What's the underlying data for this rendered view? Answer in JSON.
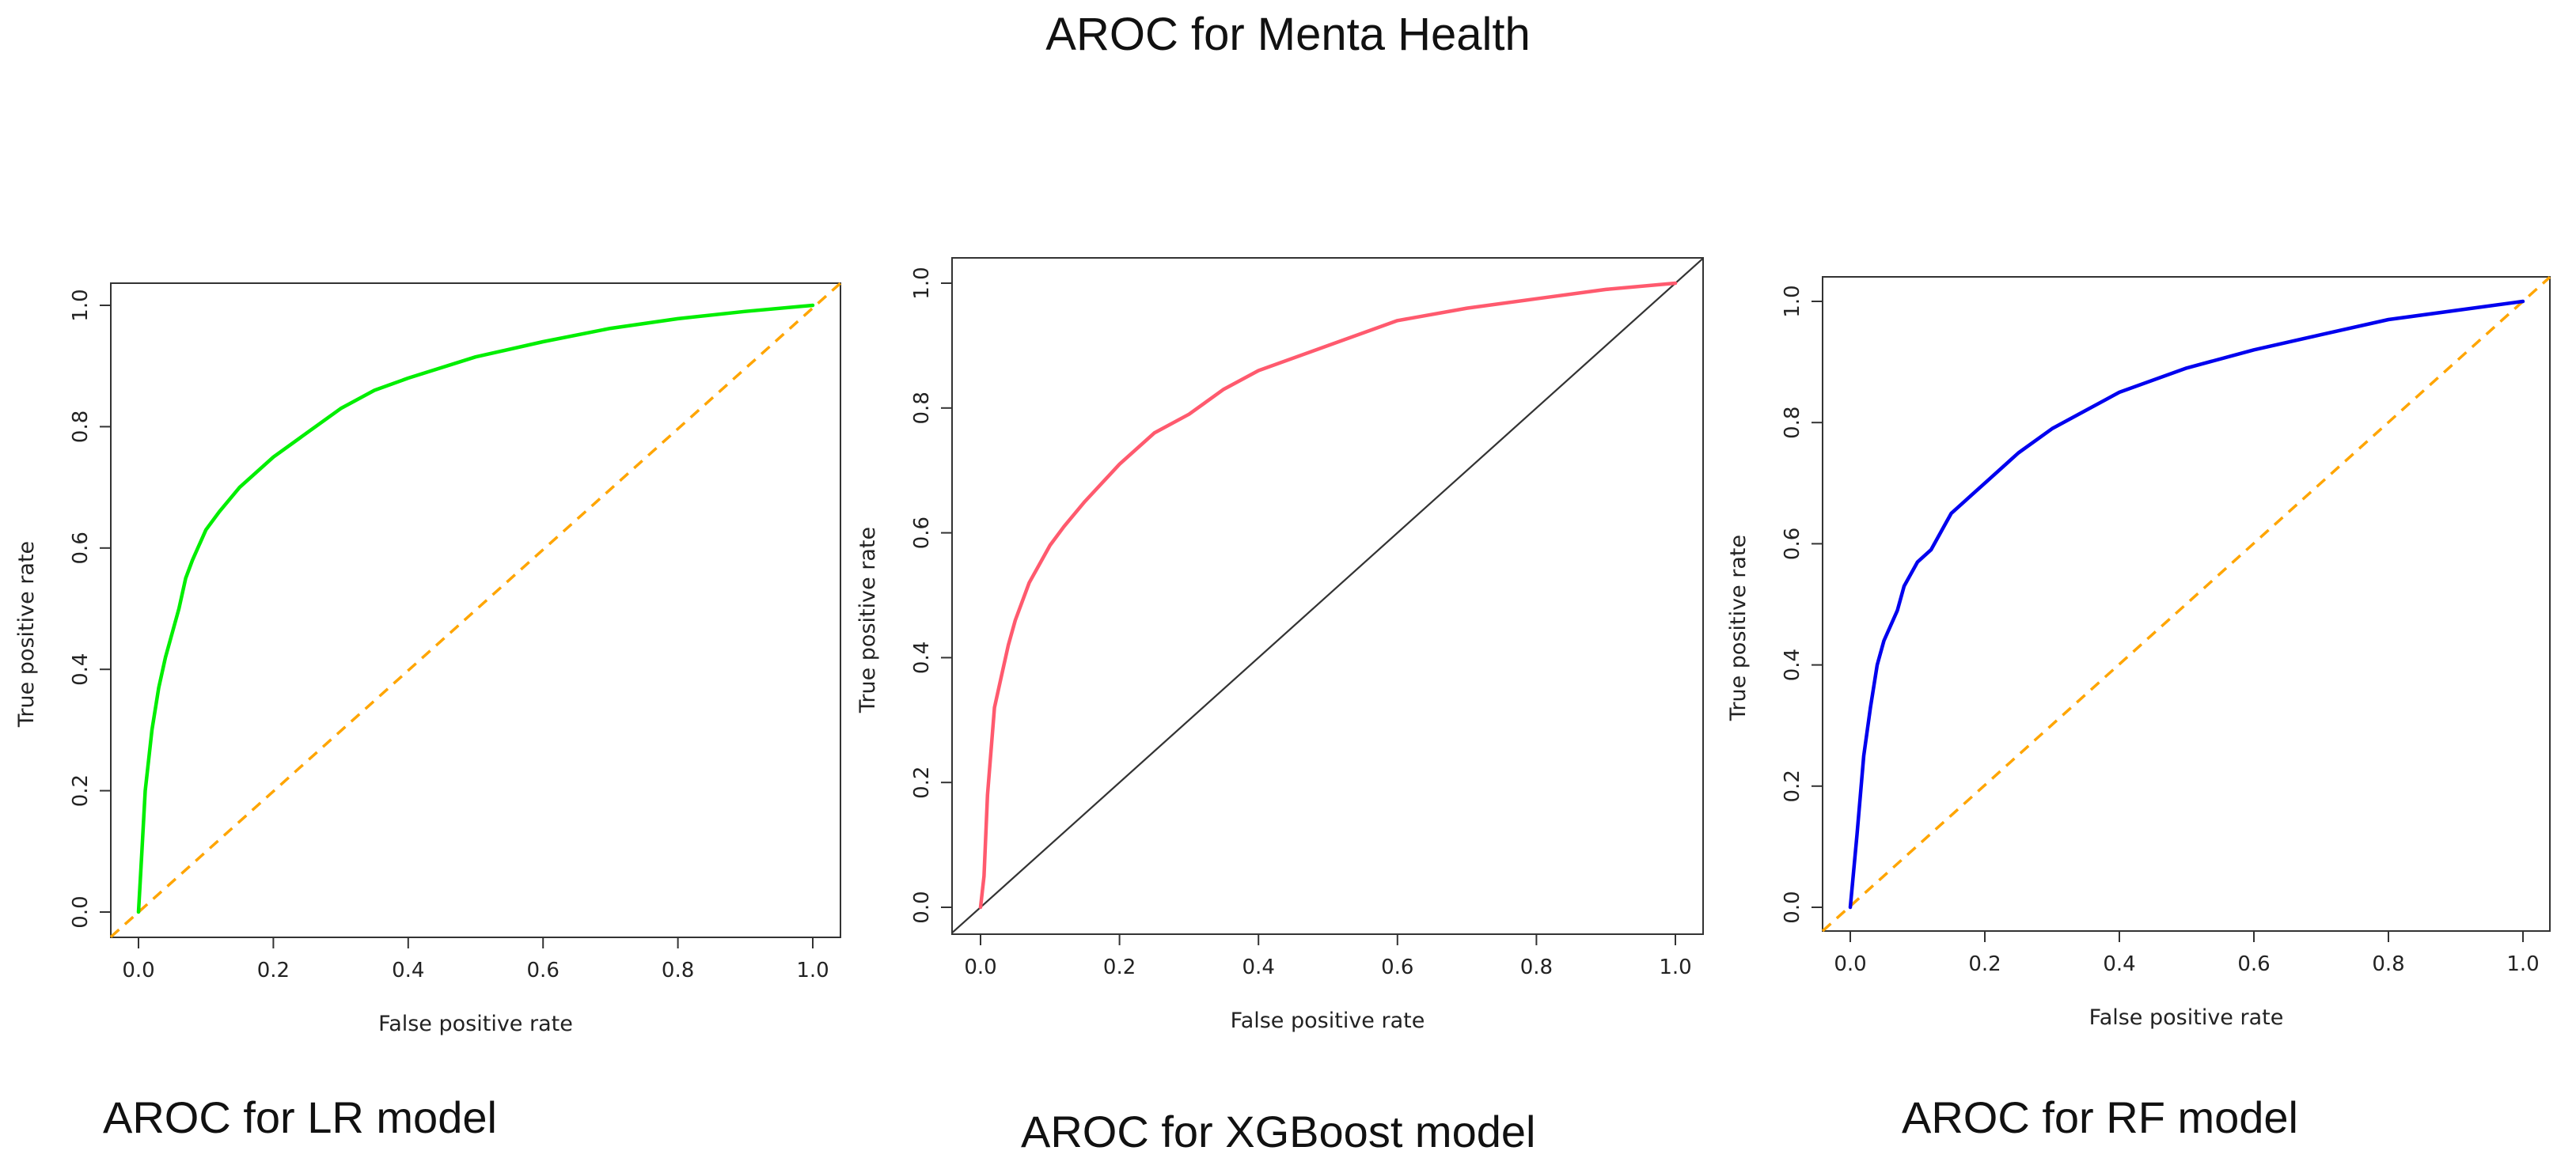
{
  "title": "AROC for Menta Health",
  "captions": [
    "AROC for LR model",
    "AROC for XGBoost model",
    "AROC for RF model"
  ],
  "chart_data": [
    {
      "type": "line",
      "xlabel": "False positive rate",
      "ylabel": "True positive rate",
      "xlim": [
        0,
        1
      ],
      "ylim": [
        0,
        1
      ],
      "xticks": [
        "0.0",
        "0.2",
        "0.4",
        "0.6",
        "0.8",
        "1.0"
      ],
      "yticks": [
        "0.0",
        "0.2",
        "0.4",
        "0.6",
        "0.8",
        "1.0"
      ],
      "grid": false,
      "reference_line": {
        "style": "dashed",
        "color": "#FFA500",
        "points": [
          [
            0,
            0
          ],
          [
            1,
            1
          ]
        ]
      },
      "series": [
        {
          "color": "#00EE00",
          "x": [
            0,
            0.005,
            0.01,
            0.02,
            0.03,
            0.04,
            0.05,
            0.06,
            0.07,
            0.08,
            0.1,
            0.12,
            0.15,
            0.2,
            0.25,
            0.3,
            0.35,
            0.4,
            0.5,
            0.6,
            0.7,
            0.8,
            0.9,
            1.0
          ],
          "y": [
            0,
            0.1,
            0.2,
            0.3,
            0.37,
            0.42,
            0.46,
            0.5,
            0.55,
            0.58,
            0.63,
            0.66,
            0.7,
            0.75,
            0.79,
            0.83,
            0.86,
            0.88,
            0.915,
            0.94,
            0.962,
            0.978,
            0.99,
            1.0
          ]
        }
      ]
    },
    {
      "type": "line",
      "xlabel": "False positive rate",
      "ylabel": "True positive rate",
      "xlim": [
        0,
        1
      ],
      "ylim": [
        0,
        1
      ],
      "xticks": [
        "0.0",
        "0.2",
        "0.4",
        "0.6",
        "0.8",
        "1.0"
      ],
      "yticks": [
        "0.0",
        "0.2",
        "0.4",
        "0.6",
        "0.8",
        "1.0"
      ],
      "grid": false,
      "reference_line": {
        "style": "solid",
        "color": "#333333",
        "points": [
          [
            0,
            0
          ],
          [
            1,
            1
          ]
        ]
      },
      "series": [
        {
          "color": "#FF5A6E",
          "x": [
            0,
            0.005,
            0.01,
            0.02,
            0.03,
            0.04,
            0.05,
            0.07,
            0.1,
            0.12,
            0.15,
            0.2,
            0.25,
            0.3,
            0.35,
            0.4,
            0.5,
            0.6,
            0.7,
            0.8,
            0.9,
            1.0
          ],
          "y": [
            0,
            0.05,
            0.18,
            0.32,
            0.37,
            0.42,
            0.46,
            0.52,
            0.58,
            0.61,
            0.65,
            0.71,
            0.76,
            0.79,
            0.83,
            0.86,
            0.9,
            0.94,
            0.96,
            0.975,
            0.99,
            1.0
          ]
        }
      ]
    },
    {
      "type": "line",
      "xlabel": "False positive rate",
      "ylabel": "True positive rate",
      "xlim": [
        0,
        1
      ],
      "ylim": [
        0,
        1
      ],
      "xticks": [
        "0.0",
        "0.2",
        "0.4",
        "0.6",
        "0.8",
        "1.0"
      ],
      "yticks": [
        "0.0",
        "0.2",
        "0.4",
        "0.6",
        "0.8",
        "1.0"
      ],
      "grid": false,
      "reference_line": {
        "style": "dashed",
        "color": "#FFA500",
        "points": [
          [
            0,
            0
          ],
          [
            1,
            1
          ]
        ]
      },
      "series": [
        {
          "color": "#0000EE",
          "x": [
            0,
            0.01,
            0.02,
            0.03,
            0.04,
            0.05,
            0.07,
            0.08,
            0.1,
            0.12,
            0.14,
            0.15,
            0.18,
            0.2,
            0.25,
            0.3,
            0.35,
            0.4,
            0.5,
            0.6,
            0.7,
            0.8,
            0.9,
            1.0
          ],
          "y": [
            0,
            0.12,
            0.25,
            0.33,
            0.4,
            0.44,
            0.49,
            0.53,
            0.57,
            0.59,
            0.63,
            0.65,
            0.68,
            0.7,
            0.75,
            0.79,
            0.82,
            0.85,
            0.89,
            0.92,
            0.945,
            0.97,
            0.985,
            1.0
          ]
        }
      ]
    }
  ]
}
